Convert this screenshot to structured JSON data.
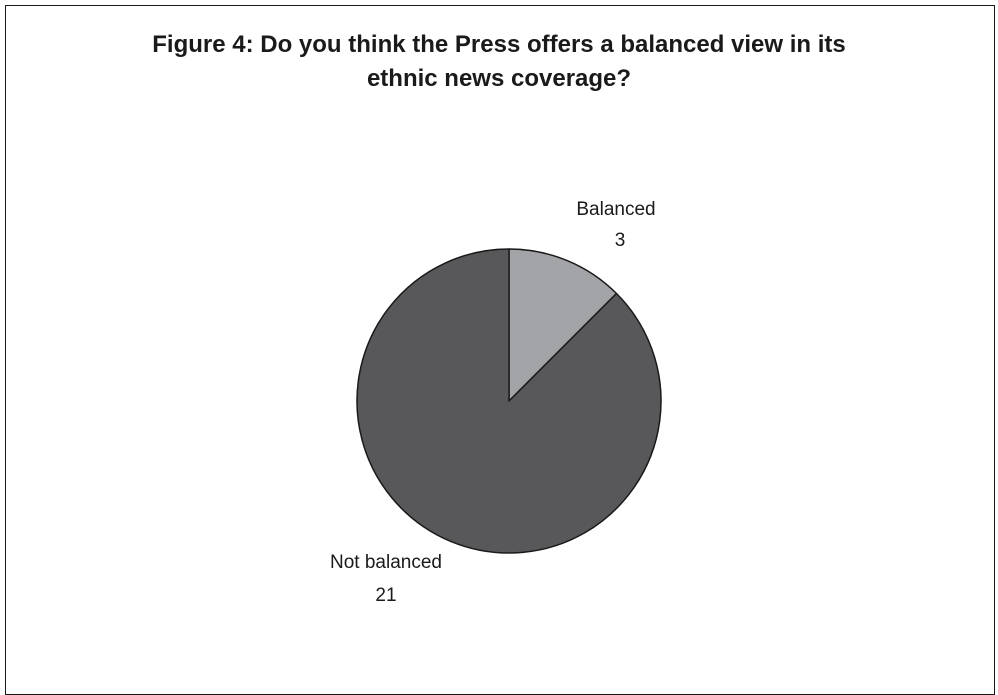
{
  "chart_data": {
    "type": "pie",
    "title_lines": [
      "Figure 4: Do you think the Press offers a balanced view in its",
      "ethnic news coverage?"
    ],
    "slices": [
      {
        "label": "Balanced",
        "value": 3,
        "color": "#a3a4a7"
      },
      {
        "label": "Not balanced",
        "value": 21,
        "color": "#58585a"
      }
    ],
    "start_angle": "12 o'clock",
    "direction": "clockwise",
    "legend": "none"
  }
}
